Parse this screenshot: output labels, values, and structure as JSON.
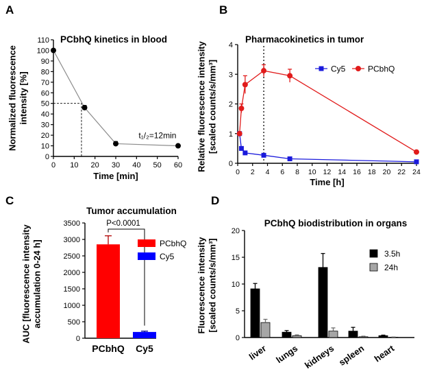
{
  "figure": {
    "panels": [
      "A",
      "B",
      "C",
      "D"
    ]
  },
  "chart_data": [
    {
      "panel": "A",
      "type": "line",
      "title": "PCbhQ kinetics in blood",
      "xlabel": "Time [min]",
      "ylabel": "Normalized fluorescence intensity [%]",
      "ylabel_lines": [
        "Normalized fluorescence",
        "intensity [%]"
      ],
      "xlim": [
        0,
        60
      ],
      "ylim": [
        0,
        110
      ],
      "xticks": [
        0,
        10,
        20,
        30,
        40,
        50,
        60
      ],
      "yticks": [
        0,
        10,
        20,
        30,
        40,
        50,
        60,
        70,
        80,
        90,
        100,
        110
      ],
      "series": [
        {
          "x": [
            0,
            15,
            30,
            60
          ],
          "y": [
            100,
            46,
            12,
            10
          ],
          "err": [
            0,
            2,
            2,
            1
          ],
          "color": "#000000"
        }
      ],
      "halflife_guide": {
        "x": 13.5,
        "y": 50
      },
      "annotation": "t₁/₂=12min",
      "annotation_at": [
        41,
        17
      ]
    },
    {
      "panel": "B",
      "type": "line",
      "title": "Pharmacokinetics in tumor",
      "xlabel": "Time [h]",
      "ylabel": "Relative fluorescence intensity [scaled counts/s/mm³]",
      "ylabel_lines": [
        "Relative fluorescence intensity",
        "[scaled counts/s/mm³]"
      ],
      "xlim": [
        0,
        24
      ],
      "ylim": [
        0,
        4
      ],
      "xticks": [
        0,
        2,
        4,
        6,
        8,
        10,
        12,
        14,
        16,
        18,
        20,
        22,
        24
      ],
      "yticks": [
        0,
        1,
        2,
        3,
        4
      ],
      "vline_x": 3.5,
      "legend_placement": "top-right",
      "series": [
        {
          "name": "Cy5",
          "marker": "square",
          "color": "#1a1adc",
          "x": [
            0.25,
            0.5,
            1,
            3.5,
            7,
            24
          ],
          "y": [
            1.0,
            0.5,
            0.35,
            0.27,
            0.15,
            0.05
          ],
          "err": [
            0.05,
            0.05,
            0.04,
            0.03,
            0.02,
            0.02
          ]
        },
        {
          "name": "PCbhQ",
          "marker": "circle",
          "color": "#e11b1b",
          "x": [
            0.25,
            0.5,
            1,
            3.5,
            7,
            24
          ],
          "y": [
            1.0,
            1.85,
            2.65,
            3.12,
            2.95,
            0.38
          ],
          "err": [
            0.05,
            0.15,
            0.3,
            0.2,
            0.22,
            0.03
          ]
        }
      ]
    },
    {
      "panel": "C",
      "type": "bar",
      "title": "Tumor accumulation",
      "ylabel": "AUC [fluorescence intensity accumulation 0-24 h]",
      "ylabel_lines": [
        "AUC [fluorescence intensity",
        "accumulation 0-24 h]"
      ],
      "categories": [
        "PCbhQ",
        "Cy5"
      ],
      "values": [
        2850,
        190
      ],
      "err": [
        260,
        25
      ],
      "colors": [
        "#ff0000",
        "#0000ff"
      ],
      "ylim": [
        0,
        3500
      ],
      "yticks": [
        0,
        500,
        1000,
        1500,
        2000,
        2500,
        3000,
        3500
      ],
      "significance": "P<0.0001",
      "legend": [
        "PCbhQ",
        "Cy5"
      ],
      "legend_placement": "right"
    },
    {
      "panel": "D",
      "type": "bar",
      "title": "PCbhQ biodistribution in organs",
      "ylabel": "Fluorescence intensity [scaled counts/s/mm³]",
      "ylabel_lines": [
        "Fluorescence intensity",
        "[scaled counts/s/mm³]"
      ],
      "categories": [
        "liver",
        "lungs",
        "kidneys",
        "spleen",
        "heart"
      ],
      "ylim": [
        0,
        20
      ],
      "yticks": [
        0,
        5,
        10,
        15,
        20
      ],
      "legend_placement": "right",
      "series": [
        {
          "name": "3.5h",
          "color": "#000000",
          "values": [
            9.1,
            1.0,
            13.1,
            1.2,
            0.35
          ],
          "err": [
            1.0,
            0.3,
            2.6,
            0.7,
            0.1
          ]
        },
        {
          "name": "24h",
          "color": "#a6a6a6",
          "values": [
            2.8,
            0.35,
            1.2,
            0.15,
            0.05
          ],
          "err": [
            0.6,
            0.15,
            0.6,
            0.1,
            0.05
          ]
        }
      ]
    }
  ]
}
